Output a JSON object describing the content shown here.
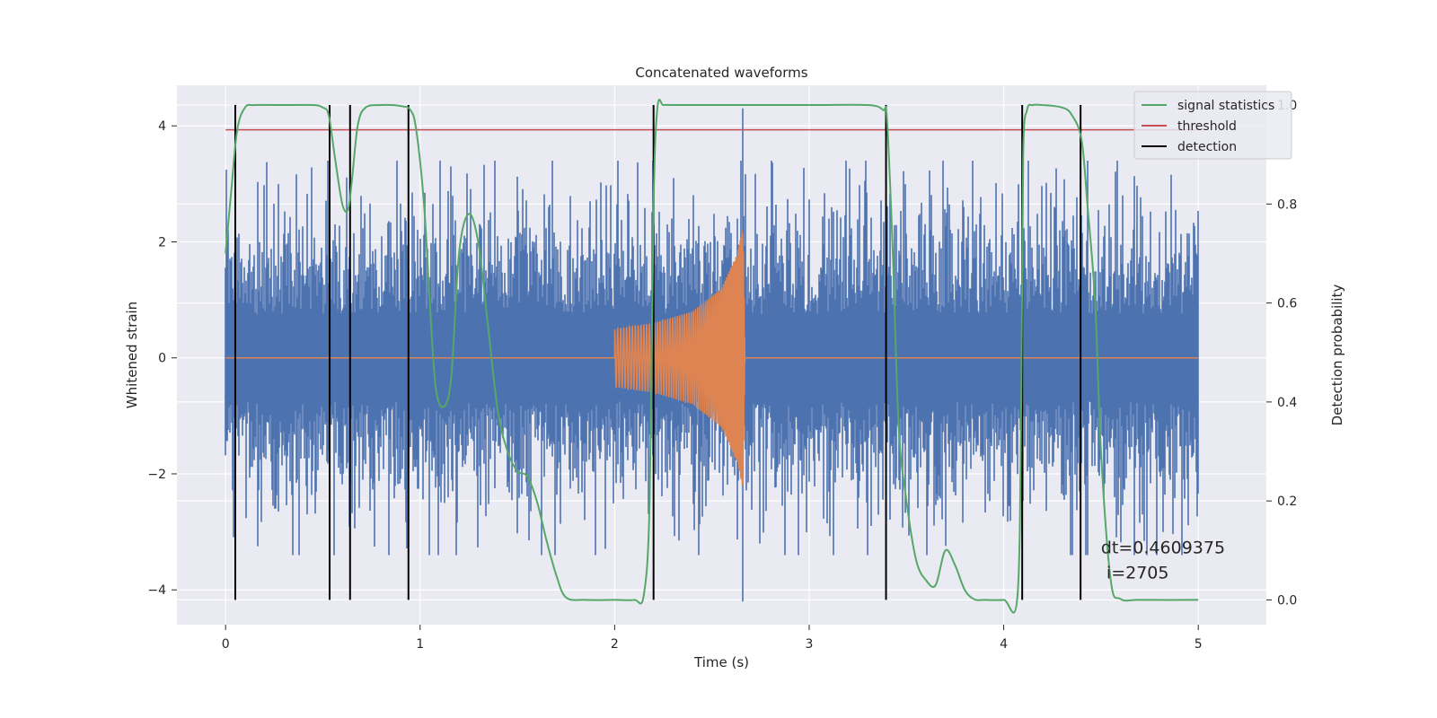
{
  "chart_data": {
    "type": "line",
    "title": "Concatenated waveforms",
    "xlabel": "Time (s)",
    "ylabel": "Whitened strain",
    "ylabel_right": "Detection probability",
    "xlim": [
      -0.25,
      5.35
    ],
    "ylim": [
      -4.6,
      4.7
    ],
    "ylim_right": [
      -0.05,
      1.04
    ],
    "x_ticks": [
      0,
      1,
      2,
      3,
      4,
      5
    ],
    "y_ticks": [
      -4,
      -2,
      0,
      2,
      4
    ],
    "y_ticks_right": [
      0.0,
      0.2,
      0.4,
      0.6,
      0.8,
      1.0
    ],
    "x_tick_labels": [
      "0",
      "1",
      "2",
      "3",
      "4",
      "5"
    ],
    "y_tick_labels": [
      "−4",
      "−2",
      "0",
      "2",
      "4"
    ],
    "y_tick_labels_right": [
      "0.0",
      "0.2",
      "0.4",
      "0.6",
      "0.8",
      "1.0"
    ],
    "grid": true,
    "legend_position": "top-right",
    "colors": {
      "background": "#eaeaf2",
      "strain": "#4c72b0",
      "template": "#dd8452",
      "signal_statistics": "#55a868",
      "threshold": "#c44e52",
      "detection": "#000000"
    },
    "series": [
      {
        "name": "strain",
        "axis": "left",
        "description_values": "noise approx. between -3.5 and 4.3, spike to 4.3 and -4.2 near t=2.66",
        "x_range": [
          0,
          5
        ],
        "peak_max": 4.3,
        "peak_min": -4.2
      },
      {
        "name": "template",
        "axis": "left",
        "x": [
          0,
          2.0,
          2.0,
          2.2,
          2.4,
          2.55,
          2.63,
          2.66,
          2.67,
          5.0
        ],
        "envelope": [
          0,
          0,
          0.5,
          0.6,
          0.8,
          1.2,
          1.8,
          2.3,
          0,
          0
        ]
      },
      {
        "name": "signal statistics",
        "axis": "right",
        "x": [
          0.0,
          0.03,
          0.06,
          0.1,
          0.15,
          0.3,
          0.45,
          0.5,
          0.53,
          0.56,
          0.6,
          0.63,
          0.65,
          0.68,
          0.72,
          0.8,
          0.9,
          0.95,
          0.98,
          1.02,
          1.05,
          1.08,
          1.12,
          1.16,
          1.2,
          1.25,
          1.3,
          1.35,
          1.4,
          1.45,
          1.5,
          1.55,
          1.6,
          1.65,
          1.7,
          1.75,
          1.85,
          2.0,
          2.1,
          2.15,
          2.18,
          2.2,
          2.22,
          2.25,
          2.3,
          2.5,
          3.0,
          3.3,
          3.38,
          3.4,
          3.43,
          3.46,
          3.5,
          3.55,
          3.6,
          3.65,
          3.7,
          3.75,
          3.8,
          3.85,
          3.9,
          4.0,
          4.07,
          4.09,
          4.1,
          4.12,
          4.15,
          4.2,
          4.3,
          4.35,
          4.4,
          4.43,
          4.47,
          4.5,
          4.55,
          4.6,
          4.7,
          5.0
        ],
        "values": [
          0.7,
          0.83,
          0.95,
          0.995,
          1.0,
          1.0,
          1.0,
          0.995,
          0.98,
          0.9,
          0.8,
          0.79,
          0.85,
          0.96,
          0.995,
          1.0,
          0.998,
          0.99,
          0.95,
          0.8,
          0.6,
          0.43,
          0.39,
          0.45,
          0.7,
          0.78,
          0.72,
          0.55,
          0.38,
          0.3,
          0.26,
          0.25,
          0.2,
          0.12,
          0.05,
          0.005,
          0.0,
          0.0,
          0.0,
          0.01,
          0.2,
          0.8,
          0.995,
          1.0,
          1.0,
          1.0,
          1.0,
          1.0,
          0.99,
          0.97,
          0.7,
          0.35,
          0.2,
          0.08,
          0.04,
          0.03,
          0.1,
          0.07,
          0.02,
          0.001,
          0.0,
          0.0,
          0.005,
          0.4,
          0.9,
          0.99,
          1.0,
          1.0,
          0.995,
          0.98,
          0.93,
          0.8,
          0.6,
          0.3,
          0.04,
          0.002,
          0.0,
          0.0
        ]
      },
      {
        "name": "threshold",
        "axis": "right",
        "x": [
          0,
          5
        ],
        "values": [
          0.95,
          0.95
        ]
      }
    ],
    "detections_x": [
      0.05,
      0.535,
      0.64,
      0.94,
      2.2,
      3.395,
      4.095,
      4.395
    ],
    "annotation_lines": [
      "dt=0.4609375",
      " i=2705"
    ],
    "legend": [
      {
        "label": "signal statistics",
        "color": "#55a868"
      },
      {
        "label": "threshold",
        "color": "#c44e52"
      },
      {
        "label": "detection",
        "color": "#000000"
      }
    ]
  }
}
